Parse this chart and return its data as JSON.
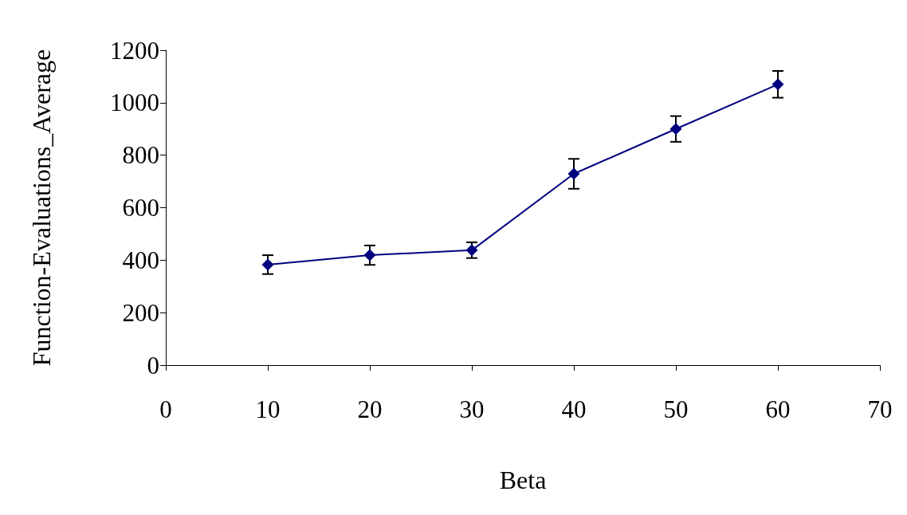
{
  "chart_data": {
    "type": "line",
    "xlabel": "Beta",
    "ylabel": "Function-Evaluations_Average",
    "x": [
      10,
      20,
      30,
      40,
      50,
      60
    ],
    "series": [
      {
        "color": "#000080",
        "values": [
          383,
          419,
          438,
          729,
          900,
          1070
        ],
        "errors": [
          36,
          37,
          30,
          57,
          49,
          51
        ]
      }
    ],
    "xlim": [
      0,
      70
    ],
    "xticks": [
      0,
      10,
      20,
      30,
      40,
      50,
      60,
      70
    ],
    "ylim": [
      0,
      1200
    ],
    "yticks": [
      0,
      200,
      400,
      600,
      800,
      1000,
      1200
    ],
    "marker": "diamond",
    "line_style": "solid"
  }
}
